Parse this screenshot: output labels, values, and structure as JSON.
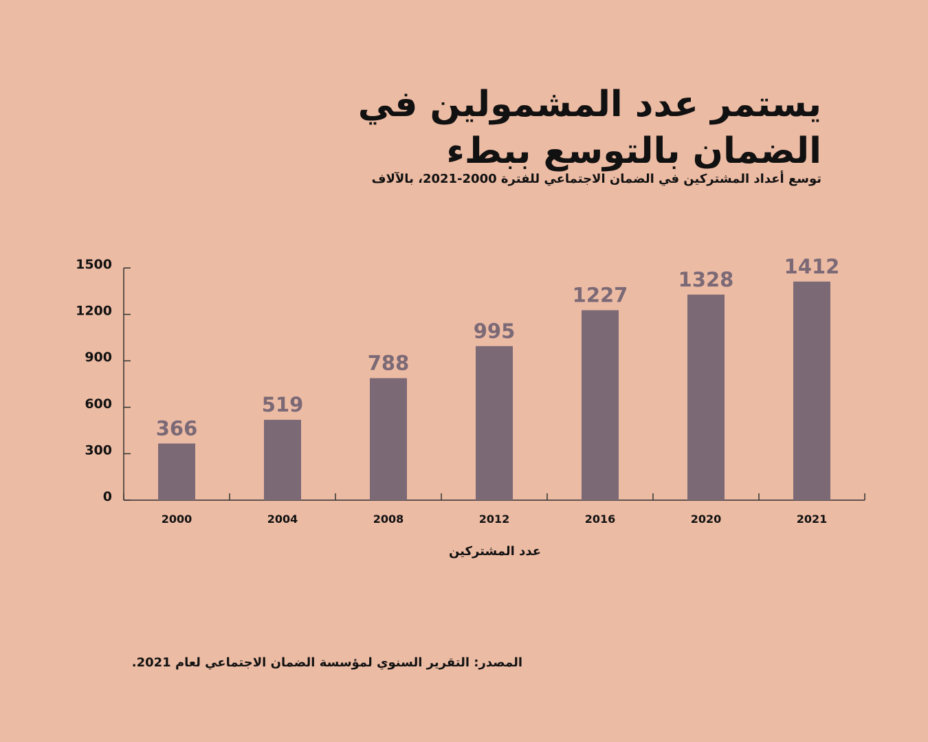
{
  "title": "يستمر عدد المشمولين في الضمان بالتوسع ببطء",
  "subtitle": "توسع أعداد المشتركين في الضمان الاجتماعي للفترة 2000-2021، بالآلاف",
  "source": "المصدر: التقرير السنوي لمؤسسة الضمان الاجتماعي لعام 2021.",
  "colors": {
    "background": "#ecbba4",
    "bar": "#7b6976",
    "axis": "#333333",
    "text": "#111111"
  },
  "chart_data": {
    "type": "bar",
    "title": "يستمر عدد المشمولين في الضمان بالتوسع ببطء",
    "subtitle": "توسع أعداد المشتركين في الضمان الاجتماعي للفترة 2000-2021، بالآلاف",
    "xlabel": "عدد المشتركين",
    "ylabel": "",
    "categories": [
      "2000",
      "2004",
      "2008",
      "2012",
      "2016",
      "2020",
      "2021"
    ],
    "values": [
      366,
      519,
      788,
      995,
      1227,
      1328,
      1412
    ],
    "ylim": [
      0,
      1500
    ],
    "yticks": [
      0,
      300,
      600,
      900,
      1200,
      1500
    ],
    "grid": false,
    "legend": "none",
    "data_labels": true
  }
}
